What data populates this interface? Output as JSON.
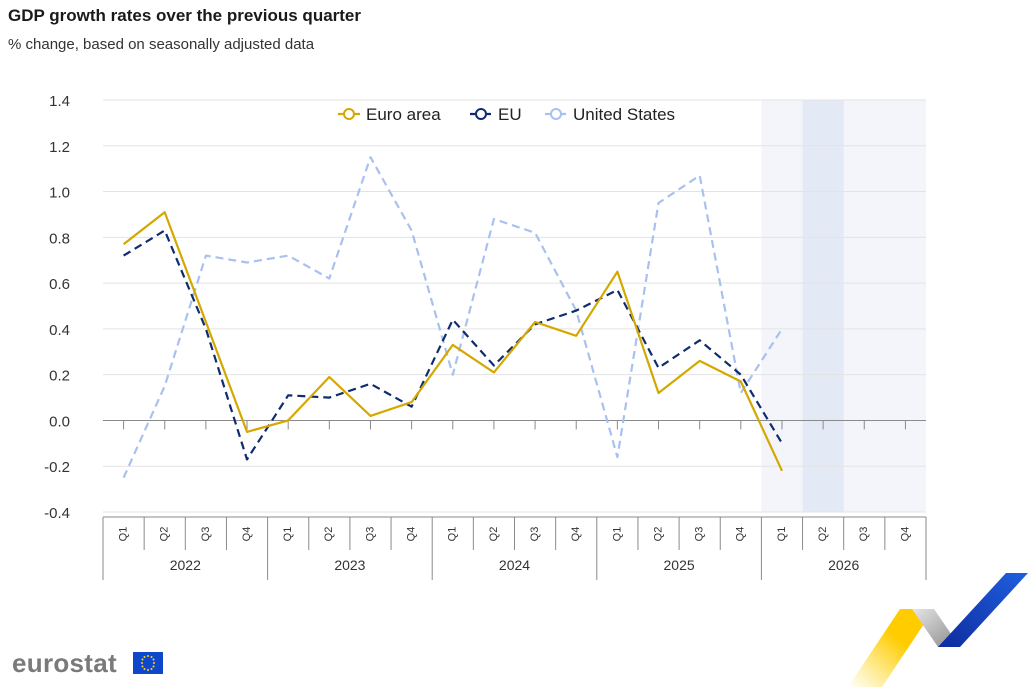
{
  "header": {
    "title": "GDP growth rates over the previous quarter",
    "subtitle": "% change, based on seasonally adjusted data"
  },
  "logo": {
    "text": "eurostat"
  },
  "chart_data": {
    "type": "line",
    "title": "GDP growth rates over the previous quarter",
    "subtitle": "% change, based on seasonally adjusted data",
    "xlabel": "",
    "ylabel": "",
    "ylim": [
      -0.4,
      1.4
    ],
    "yticks": [
      -0.4,
      -0.2,
      0.0,
      0.2,
      0.4,
      0.6,
      0.8,
      1.0,
      1.2,
      1.4
    ],
    "ytick_labels": [
      "-0.4",
      "-0.2",
      "0.0",
      "0.2",
      "0.4",
      "0.6",
      "0.8",
      "1.0",
      "1.2",
      "1.4"
    ],
    "grid": true,
    "legend_position": "top-center",
    "years": [
      "2022",
      "2023",
      "2024",
      "2025",
      "2026"
    ],
    "quarter_labels": [
      "Q1",
      "Q2",
      "Q3",
      "Q4"
    ],
    "categories": [
      "2022-Q1",
      "2022-Q2",
      "2022-Q3",
      "2022-Q4",
      "2023-Q1",
      "2023-Q2",
      "2023-Q3",
      "2023-Q4",
      "2024-Q1",
      "2024-Q2",
      "2024-Q3",
      "2024-Q4",
      "2025-Q1",
      "2025-Q2",
      "2025-Q3",
      "2025-Q4",
      "2026-Q1",
      "2026-Q2",
      "2026-Q3",
      "2026-Q4"
    ],
    "series": [
      {
        "name": "Euro area",
        "color": "#d4a800",
        "style": "solid",
        "values": [
          0.77,
          0.91,
          0.43,
          -0.05,
          0.0,
          0.19,
          0.02,
          0.08,
          0.33,
          0.21,
          0.43,
          0.37,
          0.65,
          0.12,
          0.26,
          0.17,
          -0.22,
          null,
          null,
          null
        ]
      },
      {
        "name": "EU",
        "color": "#0e2c6e",
        "style": "dashed",
        "values": [
          0.72,
          0.83,
          0.4,
          -0.17,
          0.11,
          0.1,
          0.16,
          0.06,
          0.44,
          0.24,
          0.42,
          0.48,
          0.57,
          0.23,
          0.35,
          0.2,
          -0.1,
          null,
          null,
          null
        ]
      },
      {
        "name": "United States",
        "color": "#a9c1ee",
        "style": "dashed",
        "values": [
          -0.25,
          0.15,
          0.72,
          0.69,
          0.72,
          0.62,
          1.15,
          0.83,
          0.2,
          0.88,
          0.82,
          0.48,
          -0.16,
          0.95,
          1.07,
          0.12,
          0.4,
          null,
          null,
          null
        ]
      }
    ]
  }
}
